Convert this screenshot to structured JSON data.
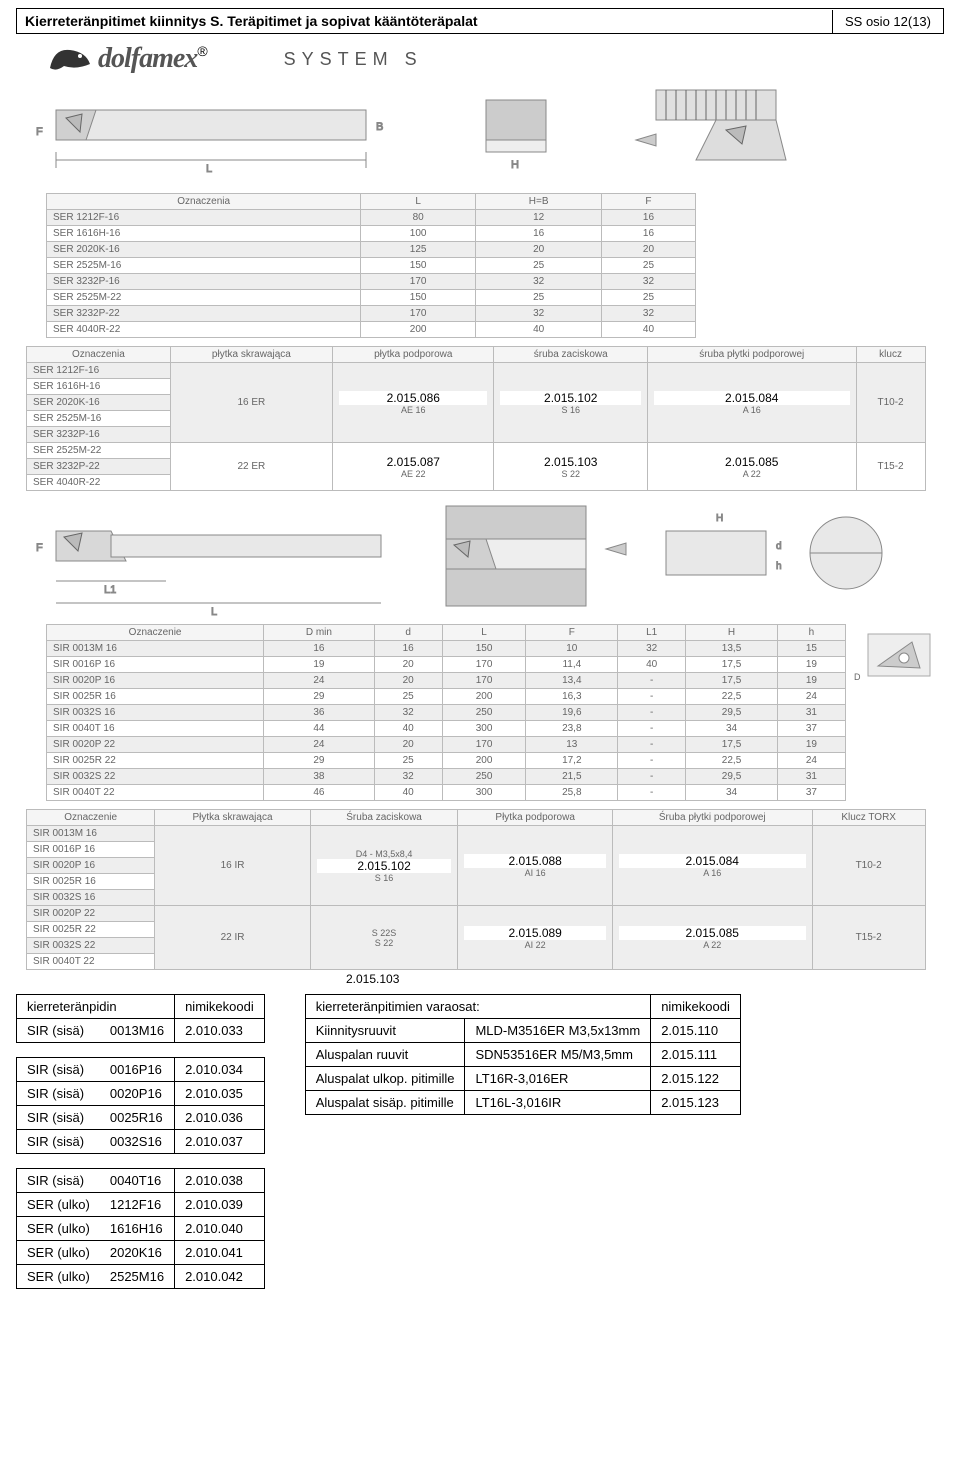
{
  "header": {
    "title": "Kierreteränpitimet kiinnitys S. Teräpitimet ja sopivat kääntöteräpalat",
    "section": "SS osio 12(13)"
  },
  "brand": {
    "name": "dolfamex",
    "reg": "®",
    "system": "SYSTEM  S"
  },
  "labels": {
    "F": "F",
    "B": "B",
    "L": "L",
    "H": "H",
    "L1": "L1",
    "D": "D",
    "d": "d",
    "h": "h"
  },
  "table1": {
    "headers": [
      "Oznaczenia",
      "L",
      "H=B",
      "F"
    ],
    "rows": [
      [
        "SER 1212F-16",
        "80",
        "12",
        "16"
      ],
      [
        "SER 1616H-16",
        "100",
        "16",
        "16"
      ],
      [
        "SER 2020K-16",
        "125",
        "20",
        "20"
      ],
      [
        "SER 2525M-16",
        "150",
        "25",
        "25"
      ],
      [
        "SER 3232P-16",
        "170",
        "32",
        "32"
      ],
      [
        "SER 2525M-22",
        "150",
        "25",
        "25"
      ],
      [
        "SER 3232P-22",
        "170",
        "32",
        "32"
      ],
      [
        "SER 4040R-22",
        "200",
        "40",
        "40"
      ]
    ]
  },
  "table2": {
    "headers": [
      "Oznaczenia",
      "płytka skrawająca",
      "płytka podporowa",
      "śruba zaciskowa",
      "śruba płytki podporowej",
      "klucz"
    ],
    "groups": [
      {
        "ozn": [
          "SER 1212F-16",
          "SER 1616H-16",
          "SER 2020K-16",
          "SER 2525M-16",
          "SER 3232P-16"
        ],
        "plytka": "16 ER",
        "podporowa_sub": "AE 16",
        "sruba_sub": "S 16",
        "srubaP_sub": "A 16",
        "klucz": "T10-2",
        "ov_podporowa": "2.015.086",
        "ov_sruba": "2.015.102",
        "ov_srubaP": "2.015.084"
      },
      {
        "ozn": [
          "SER 2525M-22",
          "SER 3232P-22",
          "SER 4040R-22"
        ],
        "plytka": "22 ER",
        "podporowa_sub": "AE 22",
        "sruba_sub": "S 22",
        "srubaP_sub": "A 22",
        "klucz": "T15-2",
        "ov_podporowa": "2.015.087",
        "ov_sruba": "2.015.103",
        "ov_srubaP": "2.015.085"
      }
    ]
  },
  "table3": {
    "headers": [
      "Oznaczenie",
      "D min",
      "d",
      "L",
      "F",
      "L1",
      "H",
      "h"
    ],
    "rows": [
      [
        "SIR 0013M 16",
        "16",
        "16",
        "150",
        "10",
        "32",
        "13,5",
        "15"
      ],
      [
        "SIR 0016P 16",
        "19",
        "20",
        "170",
        "11,4",
        "40",
        "17,5",
        "19"
      ],
      [
        "SIR 0020P 16",
        "24",
        "20",
        "170",
        "13,4",
        "-",
        "17,5",
        "19"
      ],
      [
        "SIR 0025R 16",
        "29",
        "25",
        "200",
        "16,3",
        "-",
        "22,5",
        "24"
      ],
      [
        "SIR 0032S 16",
        "36",
        "32",
        "250",
        "19,6",
        "-",
        "29,5",
        "31"
      ],
      [
        "SIR 0040T 16",
        "44",
        "40",
        "300",
        "23,8",
        "-",
        "34",
        "37"
      ],
      [
        "SIR 0020P 22",
        "24",
        "20",
        "170",
        "13",
        "-",
        "17,5",
        "19"
      ],
      [
        "SIR 0025R 22",
        "29",
        "25",
        "200",
        "17,2",
        "-",
        "22,5",
        "24"
      ],
      [
        "SIR 0032S 22",
        "38",
        "32",
        "250",
        "21,5",
        "-",
        "29,5",
        "31"
      ],
      [
        "SIR 0040T 22",
        "46",
        "40",
        "300",
        "25,8",
        "-",
        "34",
        "37"
      ]
    ]
  },
  "table4": {
    "headers": [
      "Oznaczenie",
      "Płytka skrawająca",
      "Śruba zaciskowa",
      "Płytka podporowa",
      "Śruba płytki podporowej",
      "Klucz TORX"
    ],
    "groups": [
      {
        "ozn": [
          "SIR 0013M 16",
          "SIR 0016P 16",
          "SIR 0020P 16",
          "SIR 0025R 16",
          "SIR 0032S 16"
        ],
        "plytka": "16 IR",
        "sruba_sub1": "D4 - M3,5x8,4",
        "sruba_sub2": "S 16",
        "podp_sub": "AI 16",
        "srubaP_sub": "A 16",
        "klucz": "T10-2",
        "ov_sruba": "2.015.102",
        "ov_podp": "2.015.088",
        "ov_srubaP": "2.015.084"
      },
      {
        "ozn": [
          "SIR 0020P 22",
          "SIR 0025R 22",
          "SIR 0032S 22",
          "SIR 0040T 22"
        ],
        "plytka": "22 IR",
        "sruba_sub1": "S 22S",
        "sruba_sub2": "S 22",
        "podp_sub": "AI 22",
        "srubaP_sub": "A 22",
        "klucz": "T15-2",
        "ov_podp": "2.015.089",
        "ov_srubaP": "2.015.085",
        "ov_sruba_below": "2.015.103"
      }
    ]
  },
  "holders": {
    "header1": "kierreteränpidin",
    "header2": "nimikekoodi",
    "rows": [
      [
        "SIR (sisä)",
        "0013M16",
        "2.010.033"
      ],
      [
        "SIR (sisä)",
        "0016P16",
        "2.010.034"
      ],
      [
        "SIR (sisä)",
        "0020P16",
        "2.010.035"
      ],
      [
        "SIR (sisä)",
        "0025R16",
        "2.010.036"
      ],
      [
        "SIR (sisä)",
        "0032S16",
        "2.010.037"
      ],
      [
        "SIR (sisä)",
        "0040T16",
        "2.010.038"
      ],
      [
        "SER (ulko)",
        "1212F16",
        "2.010.039"
      ],
      [
        "SER (ulko)",
        "1616H16",
        "2.010.040"
      ],
      [
        "SER (ulko)",
        "2020K16",
        "2.010.041"
      ],
      [
        "SER (ulko)",
        "2525M16",
        "2.010.042"
      ]
    ]
  },
  "spares": {
    "title": "kierreteränpitimien varaosat:",
    "code_h": "nimikekoodi",
    "rows": [
      [
        "Kiinnitysruuvit",
        "MLD-M3516ER M3,5x13mm",
        "2.015.110"
      ],
      [
        "Aluspalan ruuvit",
        "SDN53516ER M5/M3,5mm",
        "2.015.111"
      ],
      [
        "Aluspalat ulkop. pitimille",
        "LT16R-3,016ER",
        "2.015.122"
      ],
      [
        "Aluspalat sisäp. pitimille",
        "LT16L-3,016IR",
        "2.015.123"
      ]
    ]
  }
}
